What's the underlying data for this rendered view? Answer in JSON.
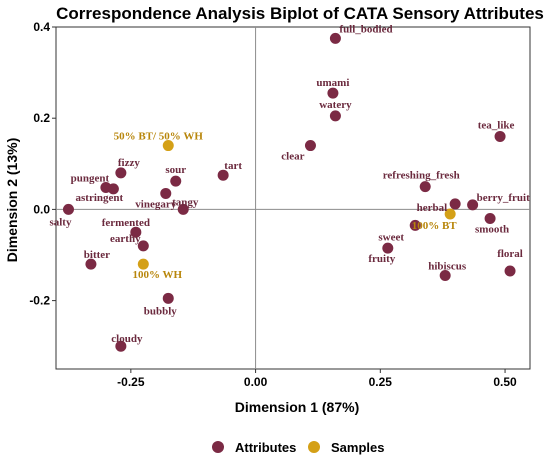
{
  "chart_data": {
    "type": "scatter",
    "title": "Correspondence Analysis Biplot of CATA Sensory Attributes",
    "xlabel": "Dimension 1 (87%)",
    "ylabel": "Dimension 2 (13%)",
    "xlim": [
      -0.4,
      0.55
    ],
    "ylim": [
      -0.35,
      0.4
    ],
    "xticks": [
      -0.25,
      0.0,
      0.25,
      0.5
    ],
    "xtick_labels": [
      "-0.25",
      "0.00",
      "0.25",
      "0.50"
    ],
    "yticks": [
      -0.2,
      0.0,
      0.2,
      0.4
    ],
    "ytick_labels": [
      "-0.2",
      "0.0",
      "0.2",
      "0.4"
    ],
    "reference_lines": {
      "x": 0.0,
      "y": 0.0
    },
    "grid": false,
    "legend_position": "bottom",
    "colors": {
      "Attributes": "#7b2a44",
      "Samples": "#d4a017"
    },
    "series": [
      {
        "name": "Attributes",
        "points": [
          {
            "label": "full_bodied",
            "x": 0.16,
            "y": 0.375
          },
          {
            "label": "umami",
            "x": 0.155,
            "y": 0.255
          },
          {
            "label": "watery",
            "x": 0.16,
            "y": 0.205
          },
          {
            "label": "tea_like",
            "x": 0.49,
            "y": 0.16
          },
          {
            "label": "clear",
            "x": 0.11,
            "y": 0.14
          },
          {
            "label": "refreshing_fresh",
            "x": 0.34,
            "y": 0.05
          },
          {
            "label": "herbal",
            "x": 0.4,
            "y": 0.012
          },
          {
            "label": "berry_fruit",
            "x": 0.435,
            "y": 0.01
          },
          {
            "label": "smooth",
            "x": 0.47,
            "y": -0.02
          },
          {
            "label": "sweet",
            "x": 0.32,
            "y": -0.035
          },
          {
            "label": "fruity",
            "x": 0.265,
            "y": -0.085
          },
          {
            "label": "hibiscus",
            "x": 0.38,
            "y": -0.145
          },
          {
            "label": "floral",
            "x": 0.51,
            "y": -0.135
          },
          {
            "label": "fizzy",
            "x": -0.27,
            "y": 0.08
          },
          {
            "label": "pungent",
            "x": -0.3,
            "y": 0.048
          },
          {
            "label": "astringent",
            "x": -0.285,
            "y": 0.045
          },
          {
            "label": "sour",
            "x": -0.16,
            "y": 0.062
          },
          {
            "label": "tart",
            "x": -0.065,
            "y": 0.075
          },
          {
            "label": "vinegary",
            "x": -0.18,
            "y": 0.035
          },
          {
            "label": "tangy",
            "x": -0.145,
            "y": 0.0
          },
          {
            "label": "salty",
            "x": -0.375,
            "y": 0.0
          },
          {
            "label": "fermented",
            "x": -0.24,
            "y": -0.05
          },
          {
            "label": "bitter",
            "x": -0.33,
            "y": -0.12
          },
          {
            "label": "earthy",
            "x": -0.225,
            "y": -0.08
          },
          {
            "label": "bubbly",
            "x": -0.175,
            "y": -0.195
          },
          {
            "label": "cloudy",
            "x": -0.27,
            "y": -0.3
          }
        ]
      },
      {
        "name": "Samples",
        "points": [
          {
            "label": "50% BT/ 50% WH",
            "x": -0.175,
            "y": 0.14
          },
          {
            "label": "100% BT",
            "x": 0.39,
            "y": -0.01
          },
          {
            "label": "100% WH",
            "x": -0.225,
            "y": -0.12
          }
        ]
      }
    ]
  }
}
